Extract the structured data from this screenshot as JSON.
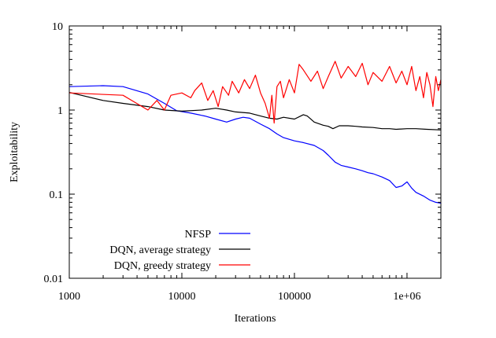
{
  "chart_data": {
    "type": "line",
    "title": "",
    "xlabel": "Iterations",
    "ylabel": "Exploitability",
    "xscale": "log",
    "yscale": "log",
    "xlim": [
      1000,
      2000000
    ],
    "ylim": [
      0.01,
      10
    ],
    "xticks": [
      {
        "value": 1000,
        "label": "1000"
      },
      {
        "value": 10000,
        "label": "10000"
      },
      {
        "value": 100000,
        "label": "100000"
      },
      {
        "value": 1000000,
        "label": "1e+06"
      }
    ],
    "yticks": [
      {
        "value": 0.01,
        "label": "0.01"
      },
      {
        "value": 0.1,
        "label": "0.1"
      },
      {
        "value": 1,
        "label": "1"
      },
      {
        "value": 10,
        "label": "10"
      }
    ],
    "grid": false,
    "legend_position": "bottom-center",
    "series": [
      {
        "name": "NFSP",
        "color": "#0000ff",
        "points": [
          [
            1000,
            1.9
          ],
          [
            2000,
            1.95
          ],
          [
            3000,
            1.9
          ],
          [
            5000,
            1.55
          ],
          [
            7000,
            1.2
          ],
          [
            9000,
            0.98
          ],
          [
            12000,
            0.92
          ],
          [
            16000,
            0.85
          ],
          [
            20000,
            0.78
          ],
          [
            25000,
            0.72
          ],
          [
            30000,
            0.78
          ],
          [
            35000,
            0.82
          ],
          [
            40000,
            0.8
          ],
          [
            50000,
            0.68
          ],
          [
            60000,
            0.6
          ],
          [
            70000,
            0.52
          ],
          [
            80000,
            0.47
          ],
          [
            100000,
            0.43
          ],
          [
            120000,
            0.41
          ],
          [
            150000,
            0.38
          ],
          [
            180000,
            0.33
          ],
          [
            200000,
            0.29
          ],
          [
            230000,
            0.24
          ],
          [
            260000,
            0.22
          ],
          [
            300000,
            0.21
          ],
          [
            350000,
            0.2
          ],
          [
            400000,
            0.19
          ],
          [
            450000,
            0.18
          ],
          [
            500000,
            0.175
          ],
          [
            600000,
            0.16
          ],
          [
            700000,
            0.145
          ],
          [
            800000,
            0.12
          ],
          [
            900000,
            0.125
          ],
          [
            1000000,
            0.14
          ],
          [
            1100000,
            0.118
          ],
          [
            1200000,
            0.105
          ],
          [
            1400000,
            0.095
          ],
          [
            1600000,
            0.085
          ],
          [
            1800000,
            0.08
          ],
          [
            2000000,
            0.078
          ]
        ]
      },
      {
        "name": "DQN, average strategy",
        "color": "#000000",
        "points": [
          [
            1000,
            1.62
          ],
          [
            2000,
            1.3
          ],
          [
            3000,
            1.2
          ],
          [
            5000,
            1.1
          ],
          [
            7000,
            1.0
          ],
          [
            10000,
            0.97
          ],
          [
            15000,
            1.0
          ],
          [
            20000,
            1.05
          ],
          [
            25000,
            1.0
          ],
          [
            30000,
            0.95
          ],
          [
            40000,
            0.92
          ],
          [
            50000,
            0.85
          ],
          [
            60000,
            0.8
          ],
          [
            70000,
            0.78
          ],
          [
            80000,
            0.82
          ],
          [
            100000,
            0.78
          ],
          [
            120000,
            0.88
          ],
          [
            130000,
            0.85
          ],
          [
            150000,
            0.72
          ],
          [
            180000,
            0.66
          ],
          [
            200000,
            0.64
          ],
          [
            220000,
            0.6
          ],
          [
            250000,
            0.65
          ],
          [
            300000,
            0.65
          ],
          [
            350000,
            0.64
          ],
          [
            400000,
            0.63
          ],
          [
            500000,
            0.62
          ],
          [
            600000,
            0.6
          ],
          [
            700000,
            0.6
          ],
          [
            800000,
            0.59
          ],
          [
            1000000,
            0.6
          ],
          [
            1200000,
            0.6
          ],
          [
            1500000,
            0.59
          ],
          [
            2000000,
            0.58
          ]
        ]
      },
      {
        "name": "DQN, greedy strategy",
        "color": "#ff0000",
        "points": [
          [
            1000,
            1.6
          ],
          [
            3000,
            1.5
          ],
          [
            5000,
            1.0
          ],
          [
            6000,
            1.3
          ],
          [
            7000,
            1.0
          ],
          [
            8000,
            1.5
          ],
          [
            10000,
            1.6
          ],
          [
            12000,
            1.4
          ],
          [
            13000,
            1.7
          ],
          [
            15000,
            2.1
          ],
          [
            17000,
            1.3
          ],
          [
            19000,
            1.7
          ],
          [
            21000,
            1.1
          ],
          [
            23000,
            1.9
          ],
          [
            26000,
            1.5
          ],
          [
            28000,
            2.2
          ],
          [
            32000,
            1.6
          ],
          [
            36000,
            2.3
          ],
          [
            40000,
            1.8
          ],
          [
            45000,
            2.6
          ],
          [
            50000,
            1.6
          ],
          [
            55000,
            1.2
          ],
          [
            60000,
            0.8
          ],
          [
            63000,
            1.5
          ],
          [
            66000,
            0.7
          ],
          [
            70000,
            1.9
          ],
          [
            75000,
            2.2
          ],
          [
            80000,
            1.4
          ],
          [
            90000,
            2.3
          ],
          [
            100000,
            1.6
          ],
          [
            110000,
            3.5
          ],
          [
            120000,
            3.0
          ],
          [
            140000,
            2.2
          ],
          [
            160000,
            2.9
          ],
          [
            180000,
            1.8
          ],
          [
            200000,
            2.5
          ],
          [
            230000,
            3.8
          ],
          [
            260000,
            2.4
          ],
          [
            300000,
            3.3
          ],
          [
            350000,
            2.5
          ],
          [
            400000,
            3.6
          ],
          [
            450000,
            2.0
          ],
          [
            500000,
            2.8
          ],
          [
            600000,
            2.2
          ],
          [
            700000,
            3.3
          ],
          [
            800000,
            2.1
          ],
          [
            900000,
            2.9
          ],
          [
            1000000,
            2.0
          ],
          [
            1100000,
            3.3
          ],
          [
            1200000,
            1.7
          ],
          [
            1300000,
            2.5
          ],
          [
            1400000,
            1.4
          ],
          [
            1500000,
            2.8
          ],
          [
            1600000,
            2.0
          ],
          [
            1700000,
            1.1
          ],
          [
            1800000,
            2.5
          ],
          [
            1900000,
            1.7
          ],
          [
            2000000,
            2.3
          ]
        ]
      }
    ]
  }
}
